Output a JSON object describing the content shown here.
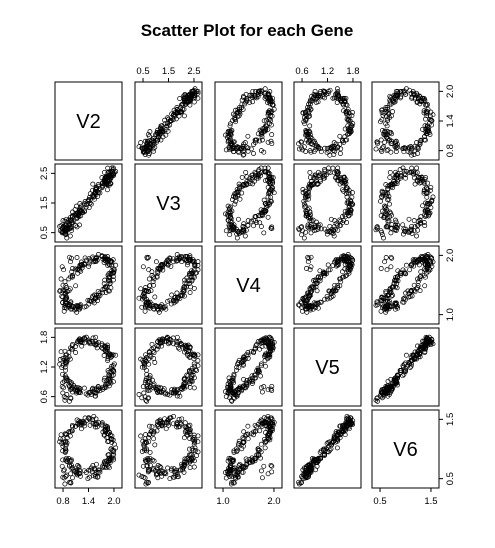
{
  "chart_data": {
    "type": "scatter",
    "title": "Scatter Plot for each Gene",
    "variables": [
      {
        "name": "V2",
        "range": [
          0.75,
          2.1
        ]
      },
      {
        "name": "V3",
        "range": [
          0.3,
          2.7
        ]
      },
      {
        "name": "V4",
        "range": [
          0.6,
          2.4
        ]
      },
      {
        "name": "V5",
        "range": [
          0.6,
          1.95
        ]
      },
      {
        "name": "V6",
        "range": [
          0.5,
          2.05
        ]
      }
    ],
    "axes": {
      "top": [
        {
          "panel_col": 1,
          "ticks": [
            "0.5",
            "1.5",
            "2.5"
          ]
        },
        {
          "panel_col": 3,
          "ticks": [
            "0.6",
            "1.2",
            "1.8"
          ]
        }
      ],
      "bottom": [
        {
          "panel_col": 0,
          "ticks": [
            "0.8",
            "1.4",
            "2.0"
          ]
        },
        {
          "panel_col": 2,
          "ticks": [
            "1.0",
            "2.0"
          ]
        },
        {
          "panel_col": 4,
          "ticks": [
            "0.5",
            "1.5"
          ]
        }
      ],
      "left": [
        {
          "panel_row": 1,
          "ticks": [
            "0.5",
            "1.5",
            "2.5"
          ]
        },
        {
          "panel_row": 3,
          "ticks": [
            "0.6",
            "1.2",
            "1.8"
          ]
        }
      ],
      "right": [
        {
          "panel_row": 0,
          "ticks": [
            "0.8",
            "1.4",
            "2.0"
          ]
        },
        {
          "panel_row": 2,
          "ticks": [
            "1.0",
            "2.0"
          ]
        },
        {
          "panel_row": 4,
          "ticks": [
            "0.5",
            "1.5"
          ]
        }
      ]
    },
    "n_points": 200,
    "point_style": "open-circle",
    "grid": false,
    "legend": "none"
  }
}
